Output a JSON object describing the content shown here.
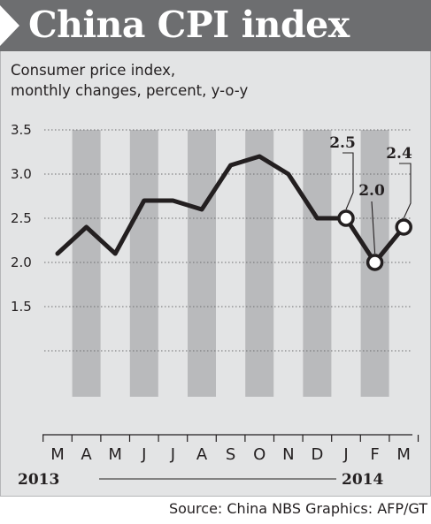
{
  "header": {
    "title": "China CPI index"
  },
  "chart_data": {
    "type": "line",
    "title": "China CPI index",
    "subtitle_lines": [
      "Consumer price index,",
      "monthly changes, percent, y-o-y"
    ],
    "categories": [
      "M",
      "A",
      "M",
      "J",
      "J",
      "A",
      "S",
      "O",
      "N",
      "D",
      "J",
      "F",
      "M"
    ],
    "series": [
      {
        "values": [
          2.1,
          2.4,
          2.1,
          2.7,
          2.7,
          2.6,
          3.1,
          3.2,
          3.0,
          2.5,
          2.5,
          2.0,
          2.4
        ]
      }
    ],
    "ylim": [
      1.0,
      3.5
    ],
    "yticks": [
      "3.5",
      "3.0",
      "2.5",
      "2.0",
      "1.5"
    ],
    "ytick_values": [
      3.5,
      3.0,
      2.5,
      2.0,
      1.5
    ],
    "gridlines": [
      3.5,
      3.0,
      2.5,
      2.0,
      1.5,
      1.0
    ],
    "year_labels": [
      "2013",
      "2014"
    ],
    "data_labels": [
      {
        "index": 10,
        "text": "2.5"
      },
      {
        "index": 11,
        "text": "2.0"
      },
      {
        "index": 12,
        "text": "2.4"
      }
    ],
    "striped_columns": [
      1,
      3,
      5,
      7,
      9,
      11
    ],
    "source": "Source: China NBS Graphics: AFP/GT",
    "colors": {
      "line": "#231f20",
      "stripe": "#b9babc",
      "panel": "#e3e4e5",
      "header": "#6d6e70"
    }
  }
}
